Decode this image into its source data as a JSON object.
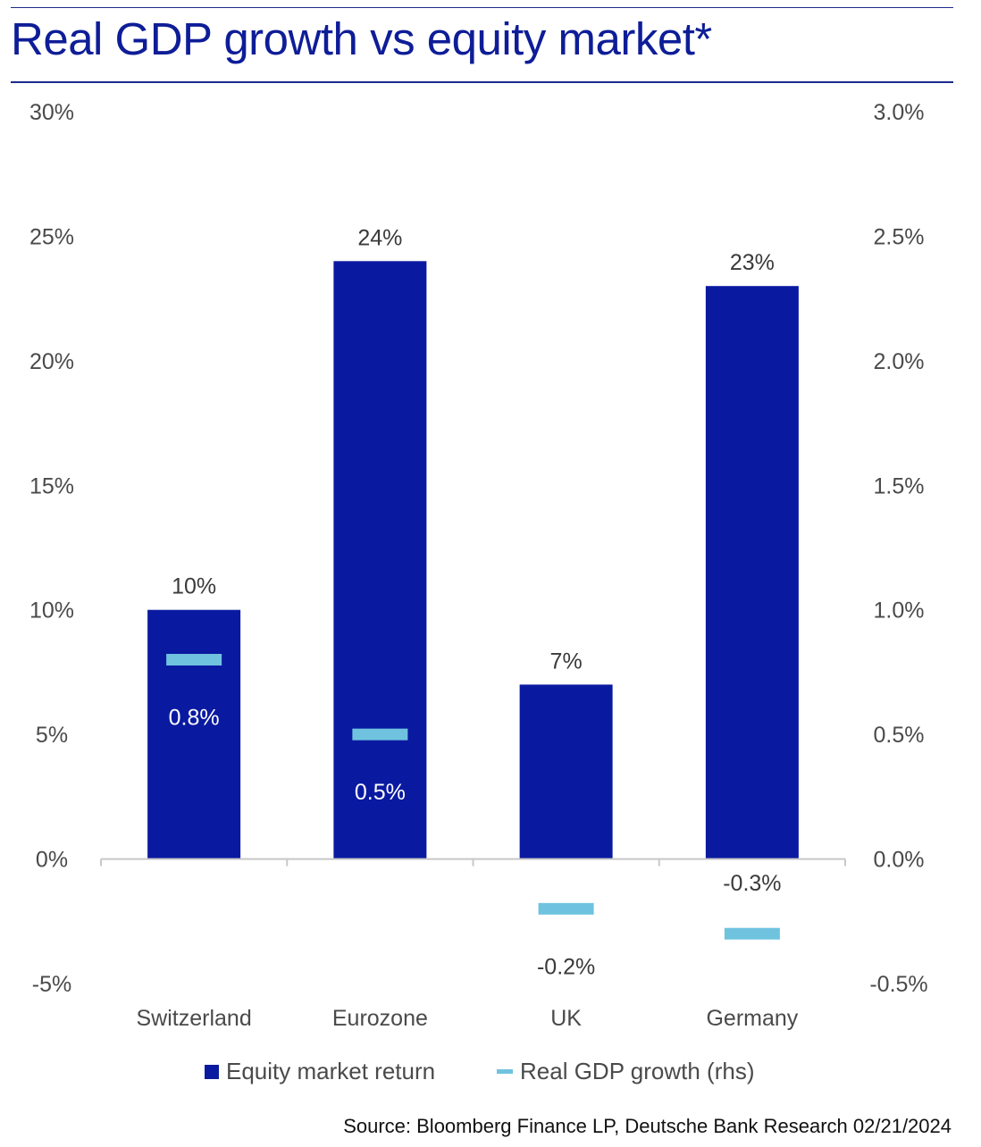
{
  "title": "Real GDP growth vs equity market*",
  "source": "Source: Bloomberg Finance LP, Deutsche Bank Research 02/21/2024",
  "legend": {
    "equity": "Equity market return",
    "gdp": "Real GDP growth (rhs)"
  },
  "colors": {
    "equity": "#0a1aa0",
    "gdp": "#6fc3df",
    "title": "#0e1d97"
  },
  "chart_data": {
    "type": "bar",
    "title": "Real GDP growth vs equity market*",
    "categories": [
      "Switzerland",
      "Eurozone",
      "UK",
      "Germany"
    ],
    "series": [
      {
        "name": "Equity market return",
        "axis": "left",
        "kind": "bar",
        "values": [
          10,
          24,
          7,
          23
        ],
        "labels": [
          "10%",
          "24%",
          "7%",
          "23%"
        ]
      },
      {
        "name": "Real GDP growth (rhs)",
        "axis": "right",
        "kind": "marker",
        "values": [
          0.8,
          0.5,
          -0.2,
          -0.3
        ],
        "labels": [
          "0.8%",
          "0.5%",
          "-0.2%",
          "-0.3%"
        ]
      }
    ],
    "y_left": {
      "ylim": [
        -5,
        30
      ],
      "ticks": [
        -5,
        0,
        5,
        10,
        15,
        20,
        25,
        30
      ],
      "tick_labels": [
        "-5%",
        "0%",
        "5%",
        "10%",
        "15%",
        "20%",
        "25%",
        "30%"
      ]
    },
    "y_right": {
      "ylim": [
        -0.5,
        3.0
      ],
      "ticks": [
        -0.5,
        0,
        0.5,
        1.0,
        1.5,
        2.0,
        2.5,
        3.0
      ],
      "tick_labels": [
        "-0.5%",
        "0.0%",
        "0.5%",
        "1.0%",
        "1.5%",
        "2.0%",
        "2.5%",
        "3.0%"
      ]
    },
    "grid": false,
    "legend_position": "bottom"
  }
}
